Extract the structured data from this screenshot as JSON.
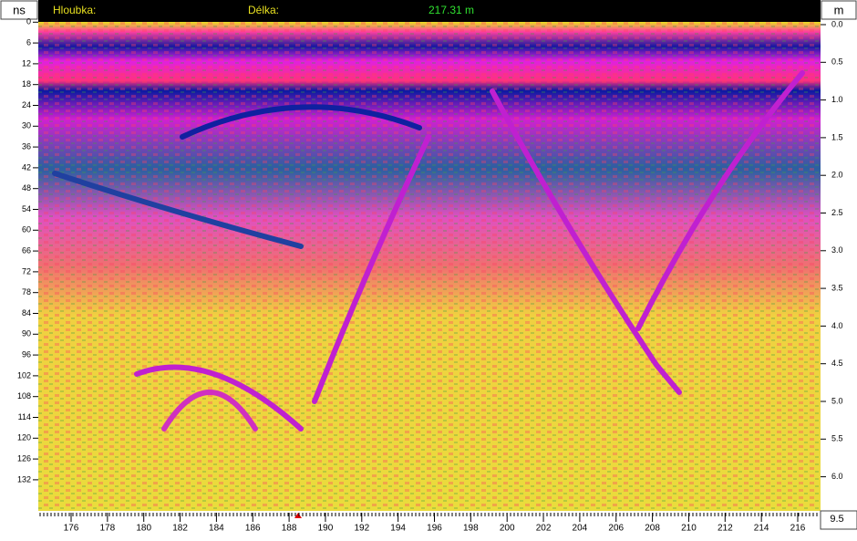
{
  "header": {
    "left_unit": "ns",
    "depth_label": "Hloubka:",
    "length_label": "Délka:",
    "length_value": "217.31 m",
    "right_unit": "m"
  },
  "left_axis": [
    "0",
    "6",
    "12",
    "18",
    "24",
    "30",
    "36",
    "42",
    "48",
    "54",
    "60",
    "66",
    "72",
    "78",
    "84",
    "90",
    "96",
    "102",
    "108",
    "114",
    "120",
    "126",
    "132"
  ],
  "right_axis": [
    "0.0",
    "0.5",
    "1.0",
    "1.5",
    "2.0",
    "2.5",
    "3.0",
    "3.5",
    "4.0",
    "4.5",
    "5.0",
    "5.5",
    "6.0"
  ],
  "bottom_axis": [
    "176",
    "178",
    "180",
    "182",
    "184",
    "186",
    "188",
    "190",
    "192",
    "194",
    "196",
    "198",
    "200",
    "202",
    "204",
    "206",
    "208",
    "210",
    "212",
    "214",
    "216"
  ],
  "corner_value": "9.5"
}
